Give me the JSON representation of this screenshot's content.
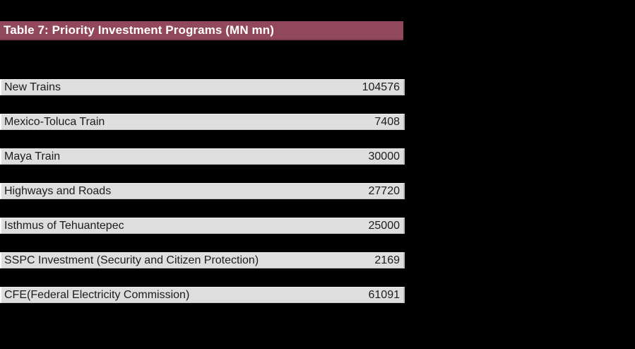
{
  "table": {
    "title": "Table 7: Priority Investment Programs (MN mn)",
    "rows": [
      {
        "label": "New Trains",
        "value": "104576"
      },
      {
        "label": "Mexico-Toluca Train",
        "value": "7408"
      },
      {
        "label": "Maya Train",
        "value": "30000"
      },
      {
        "label": "Highways and Roads",
        "value": "27720"
      },
      {
        "label": "Isthmus of Tehuantepec",
        "value": "25000"
      },
      {
        "label": "SSPC Investment (Security and Citizen Protection)",
        "value": "2169"
      },
      {
        "label": "CFE(Federal Electricity Commission)",
        "value": "61091"
      }
    ]
  },
  "colors": {
    "background": "#000000",
    "title_bar_bg": "#92485c",
    "title_text": "#ffffff",
    "row_bg": "#dedede",
    "row_text": "#1c1c1c"
  },
  "chart_data": {
    "type": "table",
    "title": "Table 7: Priority Investment Programs (MN mn)",
    "categories": [
      "New Trains",
      "Mexico-Toluca Train",
      "Maya Train",
      "Highways and Roads",
      "Isthmus of Tehuantepec",
      "SSPC Investment (Security and Citizen Protection)",
      "CFE(Federal Electricity Commission)"
    ],
    "values": [
      104576,
      7408,
      30000,
      27720,
      25000,
      2169,
      61091
    ],
    "unit": "MN mn",
    "legend_position": "none",
    "grid": false
  }
}
